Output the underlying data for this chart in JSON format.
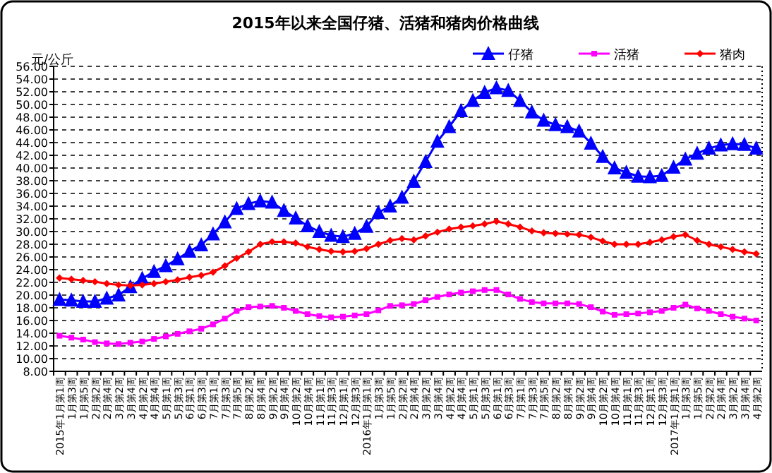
{
  "chart_data": {
    "type": "line",
    "title": "2015年以来全国仔猪、活猪和猪肉价格曲线",
    "ylabel": "元/公斤",
    "categories": [
      "2015年1月第1周",
      "1月第3周",
      "1月第5周",
      "2月第2周",
      "2月第4周",
      "3月第2周",
      "3月第4周",
      "4月第2周",
      "4月第4周",
      "5月第1周",
      "5月第3周",
      "6月第1周",
      "6月第3周",
      "7月第1周",
      "7月第3周",
      "7月第5周",
      "8月第2周",
      "8月第4周",
      "9月第2周",
      "9月第4周",
      "10月第2周",
      "10月第4周",
      "11月第1周",
      "11月第3周",
      "12月第1周",
      "12月第3周",
      "2016年1月第1周",
      "1月第3周",
      "1月第5周",
      "2月第2周",
      "2月第4周",
      "3月第2周",
      "3月第4周",
      "4月第2周",
      "4月第4周",
      "5月第1周",
      "5月第3周",
      "6月第1周",
      "6月第3周",
      "7月第1周",
      "7月第3周",
      "7月第5周",
      "8月第2周",
      "8月第4周",
      "9月第2周",
      "9月第4周",
      "10月第2周",
      "10月第4周",
      "11月第1周",
      "11月第3周",
      "12月第1周",
      "12月第3周",
      "2017年1月第1周",
      "1月第3周",
      "1月第5周",
      "2月第2周",
      "2月第4周",
      "3月第2周",
      "3月第4周",
      "4月第2周"
    ],
    "series": [
      {
        "name": "仔猪",
        "color": "#0000ff",
        "marker": "triangle",
        "values": [
          19.3,
          19.2,
          19.0,
          19.0,
          19.5,
          20.0,
          21.3,
          22.6,
          23.7,
          24.6,
          25.7,
          26.9,
          27.9,
          29.6,
          31.5,
          33.6,
          34.4,
          34.8,
          34.6,
          33.3,
          32.1,
          30.9,
          30.0,
          29.4,
          29.2,
          29.7,
          30.8,
          33.0,
          34.0,
          35.4,
          37.9,
          41.0,
          44.2,
          46.5,
          49.0,
          50.6,
          51.9,
          52.6,
          52.2,
          50.6,
          48.8,
          47.5,
          46.8,
          46.5,
          45.8,
          43.9,
          41.8,
          40.0,
          39.3,
          38.7,
          38.6,
          38.8,
          40.1,
          41.4,
          42.3,
          43.1,
          43.6,
          43.8,
          43.7,
          43.1
        ]
      },
      {
        "name": "活猪",
        "color": "#ff00ff",
        "marker": "square",
        "values": [
          13.6,
          13.3,
          13.0,
          12.6,
          12.4,
          12.3,
          12.5,
          12.7,
          13.1,
          13.5,
          13.9,
          14.3,
          14.7,
          15.4,
          16.3,
          17.5,
          18.1,
          18.2,
          18.3,
          18.0,
          17.5,
          17.0,
          16.7,
          16.5,
          16.6,
          16.8,
          17.0,
          17.6,
          18.3,
          18.4,
          18.6,
          19.2,
          19.7,
          20.1,
          20.4,
          20.6,
          20.8,
          20.8,
          20.1,
          19.4,
          18.9,
          18.7,
          18.7,
          18.7,
          18.6,
          18.1,
          17.4,
          16.9,
          17.0,
          17.1,
          17.3,
          17.5,
          18.0,
          18.5,
          17.9,
          17.5,
          17.0,
          16.6,
          16.3,
          16.0
        ]
      },
      {
        "name": "猪肉",
        "color": "#ff0000",
        "marker": "diamond",
        "values": [
          22.7,
          22.5,
          22.3,
          22.1,
          21.8,
          21.6,
          21.5,
          21.6,
          21.8,
          22.1,
          22.4,
          22.8,
          23.1,
          23.6,
          24.6,
          25.8,
          26.8,
          28.0,
          28.4,
          28.4,
          28.2,
          27.6,
          27.2,
          26.9,
          26.8,
          26.9,
          27.3,
          28.0,
          28.6,
          28.9,
          28.7,
          29.3,
          29.9,
          30.4,
          30.7,
          30.9,
          31.2,
          31.6,
          31.2,
          30.7,
          30.1,
          29.8,
          29.7,
          29.6,
          29.5,
          29.1,
          28.5,
          28.0,
          28.0,
          28.0,
          28.3,
          28.7,
          29.2,
          29.5,
          28.6,
          28.0,
          27.6,
          27.2,
          26.8,
          26.5
        ]
      }
    ],
    "ylim": [
      8,
      56
    ],
    "yticks": [
      {
        "value": 8,
        "label": "8.00"
      },
      {
        "value": 10,
        "label": "10.00"
      },
      {
        "value": 12,
        "label": "12.00"
      },
      {
        "value": 14,
        "label": "14.00"
      },
      {
        "value": 16,
        "label": "16.00"
      },
      {
        "value": 18,
        "label": "18.00"
      },
      {
        "value": 20,
        "label": "20.00"
      },
      {
        "value": 22,
        "label": "22.00"
      },
      {
        "value": 24,
        "label": "24.00"
      },
      {
        "value": 26,
        "label": "26.00"
      },
      {
        "value": 28,
        "label": "28.00"
      },
      {
        "value": 30,
        "label": "30.00"
      },
      {
        "value": 32,
        "label": "32.00"
      },
      {
        "value": 34,
        "label": "34.00"
      },
      {
        "value": 36,
        "label": "36.00"
      },
      {
        "value": 38,
        "label": "38.00"
      },
      {
        "value": 40,
        "label": "40.00"
      },
      {
        "value": 42,
        "label": "42.00"
      },
      {
        "value": 44,
        "label": "44.00"
      },
      {
        "value": 46,
        "label": "46.00"
      },
      {
        "value": 48,
        "label": "48.00"
      },
      {
        "value": 50,
        "label": "50.00"
      },
      {
        "value": 52,
        "label": "52.00"
      },
      {
        "value": 54,
        "label": "54.00"
      },
      {
        "value": 56,
        "label": "56.00"
      }
    ],
    "grid": "y",
    "legend": "top right",
    "line_style": "solid"
  }
}
